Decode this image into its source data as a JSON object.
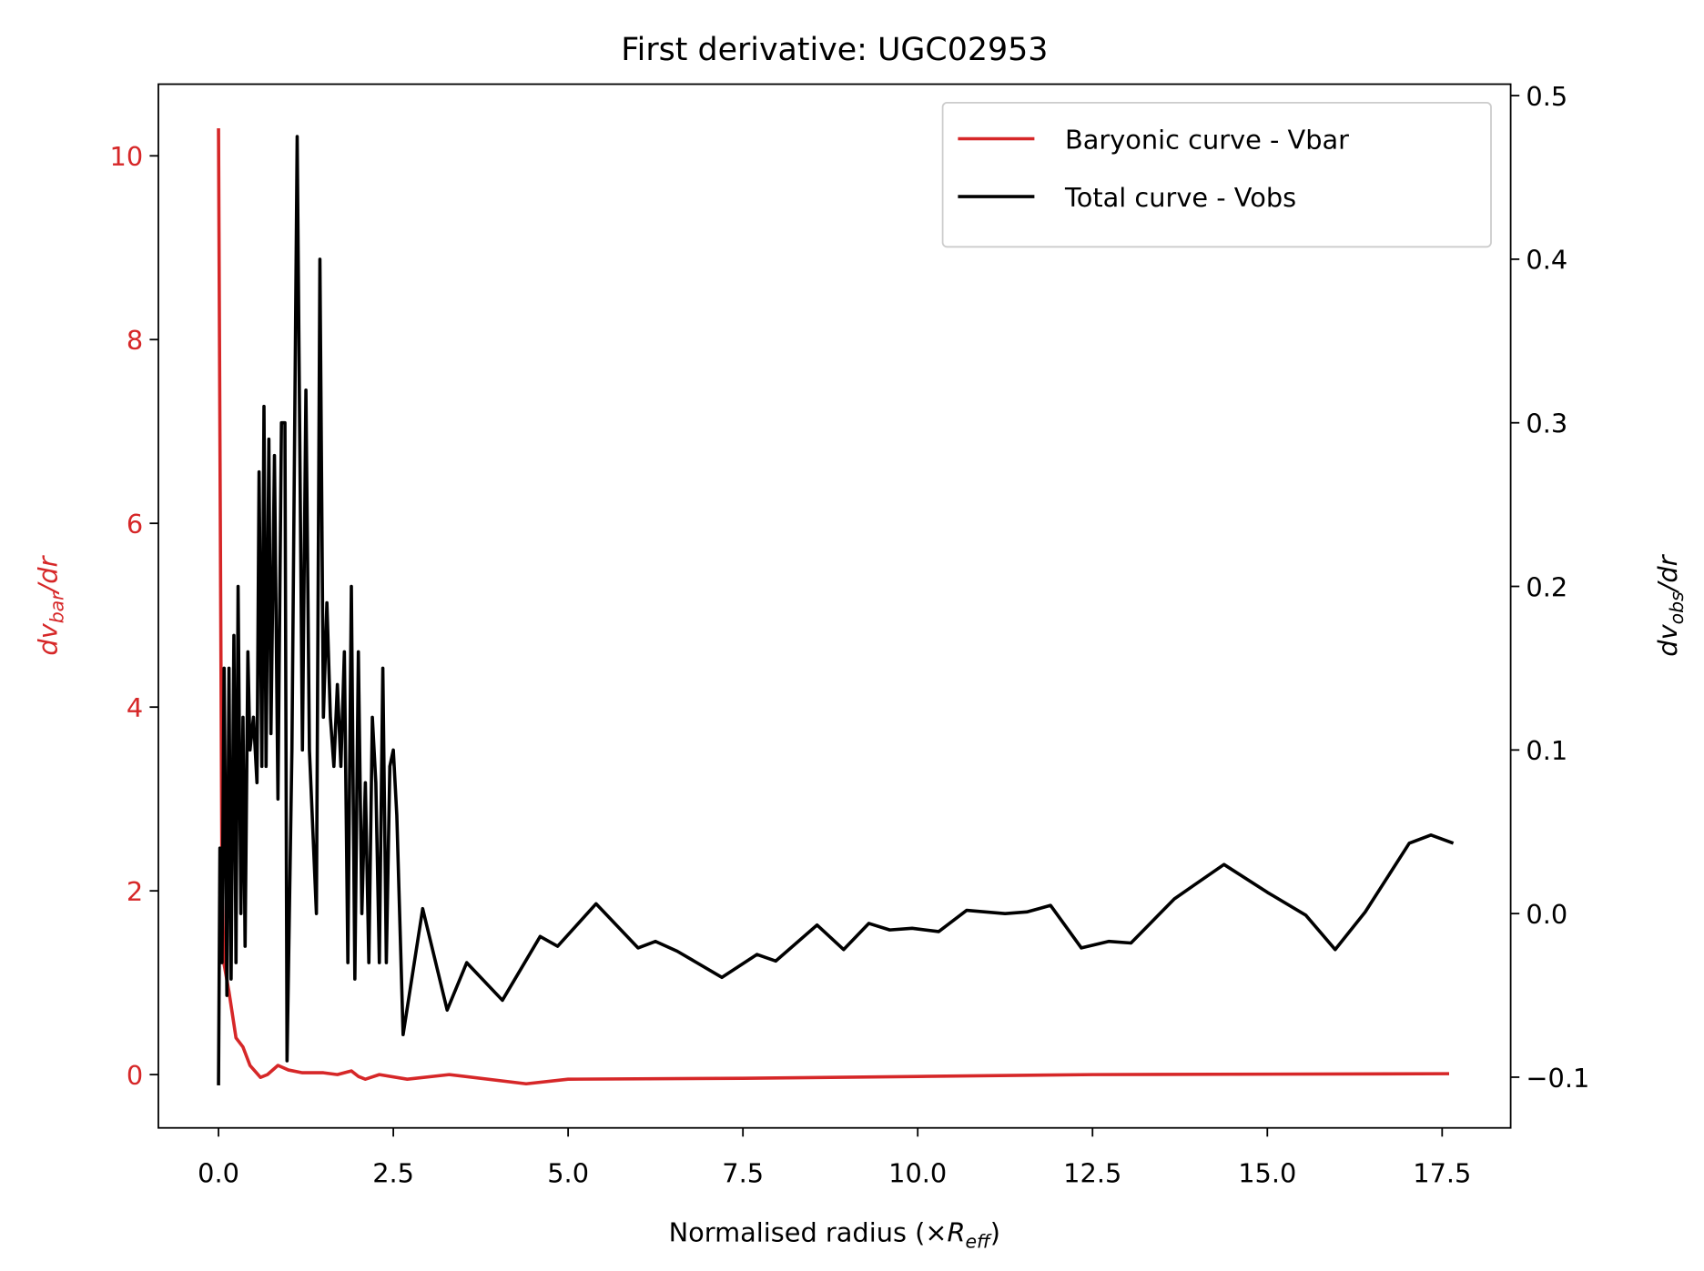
{
  "chart_data": {
    "type": "line",
    "title": "First derivative: UGC02953",
    "xlabel": [
      "Normalised radius (×",
      "R",
      "eff",
      ")"
    ],
    "ylabel": [
      "dv",
      "bar",
      "/dr"
    ],
    "y2label": [
      "dv",
      "obs",
      "/dr"
    ],
    "ycolor": "#d62728",
    "y2color": "#000000",
    "legend": "upper right",
    "xlim": [
      -0.86,
      18.48
    ],
    "ylim": [
      -0.58,
      10.78
    ],
    "y2lim": [
      -0.131,
      0.507
    ],
    "xticks": [
      {
        "value": 0,
        "label": "0.0"
      },
      2.5,
      {
        "value": 5,
        "label": "5.0"
      },
      7.5,
      {
        "value": 10,
        "label": "10.0"
      },
      12.5,
      {
        "value": 15,
        "label": "15.0"
      },
      17.5
    ],
    "yticks": [
      0,
      2,
      4,
      6,
      8,
      10
    ],
    "y2ticks": [
      {
        "value": -0.1,
        "label": "−0.1"
      },
      {
        "value": 0,
        "label": "0.0"
      },
      0.1,
      0.2,
      0.3,
      0.4,
      0.5
    ],
    "series": [
      {
        "name": "Baryonic curve - Vbar",
        "color": "#d62728",
        "x": [
          0,
          0.05,
          0.08,
          0.15,
          0.25,
          0.35,
          0.45,
          0.6,
          0.7,
          0.85,
          1.0,
          1.2,
          1.5,
          1.7,
          1.9,
          2.0,
          2.1,
          2.3,
          2.7,
          3.3,
          4.4,
          5.0,
          7.5,
          10,
          12.5,
          17.6
        ],
        "values": [
          10.3,
          2.0,
          1.2,
          0.9,
          0.4,
          0.3,
          0.1,
          -0.03,
          0.0,
          0.1,
          0.05,
          0.02,
          0.02,
          0.0,
          0.04,
          -0.02,
          -0.05,
          0.0,
          -0.05,
          0.0,
          -0.1,
          -0.05,
          -0.04,
          -0.02,
          0.0,
          0.01
        ]
      },
      {
        "name": "Total curve - Vobs",
        "color": "#000000",
        "axis": "y2",
        "x": [
          0,
          0.02,
          0.05,
          0.08,
          0.12,
          0.15,
          0.18,
          0.22,
          0.25,
          0.28,
          0.32,
          0.35,
          0.38,
          0.42,
          0.45,
          0.5,
          0.55,
          0.58,
          0.62,
          0.65,
          0.68,
          0.72,
          0.75,
          0.8,
          0.85,
          0.9,
          0.95,
          0.98,
          1.05,
          1.125,
          1.2,
          1.25,
          1.3,
          1.35,
          1.4,
          1.45,
          1.5,
          1.55,
          1.6,
          1.65,
          1.7,
          1.75,
          1.8,
          1.85,
          1.9,
          1.95,
          2.0,
          2.05,
          2.1,
          2.15,
          2.2,
          2.25,
          2.3,
          2.35,
          2.4,
          2.45,
          2.5,
          2.55,
          2.64,
          2.92,
          3.27,
          3.55,
          4.06,
          4.6,
          4.85,
          5.4,
          6.0,
          6.25,
          6.56,
          7.2,
          7.7,
          7.97,
          8.56,
          8.94,
          9.3,
          9.6,
          9.92,
          10.3,
          10.7,
          11.25,
          11.56,
          11.9,
          12.34,
          12.73,
          13.05,
          13.67,
          13.94,
          14.38,
          15.0,
          15.55,
          15.97,
          16.4,
          17.03,
          17.34,
          17.66
        ],
        "values": [
          -0.105,
          0.04,
          -0.03,
          0.15,
          -0.05,
          0.15,
          -0.04,
          0.17,
          -0.03,
          0.2,
          0.0,
          0.12,
          -0.02,
          0.16,
          0.1,
          0.12,
          0.08,
          0.27,
          0.09,
          0.31,
          0.09,
          0.29,
          0.11,
          0.28,
          0.07,
          0.3,
          0.3,
          -0.09,
          0.1,
          0.475,
          0.1,
          0.32,
          0.1,
          0.05,
          0.0,
          0.4,
          0.12,
          0.19,
          0.12,
          0.09,
          0.14,
          0.09,
          0.16,
          -0.03,
          0.2,
          -0.04,
          0.16,
          0.0,
          0.08,
          -0.03,
          0.12,
          0.08,
          -0.03,
          0.15,
          -0.03,
          0.09,
          0.1,
          0.06,
          -0.074,
          0.003,
          -0.059,
          -0.03,
          -0.053,
          -0.014,
          -0.02,
          0.006,
          -0.021,
          -0.017,
          -0.023,
          -0.039,
          -0.025,
          -0.029,
          -0.007,
          -0.022,
          -0.006,
          -0.01,
          -0.009,
          -0.011,
          0.002,
          0.0,
          0.001,
          0.005,
          -0.021,
          -0.017,
          -0.018,
          0.009,
          0.017,
          0.03,
          0.013,
          -0.001,
          -0.022,
          0.001,
          0.043,
          0.048,
          0.043
        ]
      }
    ]
  }
}
